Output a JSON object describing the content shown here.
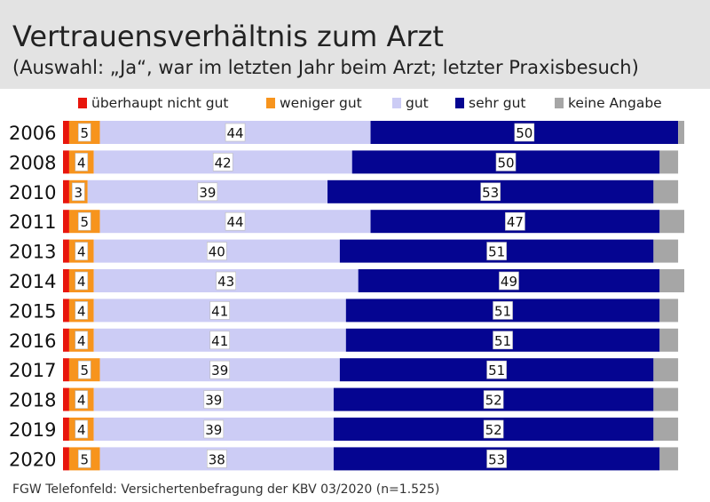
{
  "header": {
    "title": "Vertrauensverhältnis zum Arzt",
    "subtitle": "(Auswahl: „Ja“, war im letzten Jahr beim Arzt; letzter Praxisbesuch)"
  },
  "legend": {
    "items": [
      {
        "label": "überhaupt nicht gut",
        "color": "#e8160c"
      },
      {
        "label": "weniger gut",
        "color": "#f7941d"
      },
      {
        "label": "gut",
        "color": "#ccccf5"
      },
      {
        "label": "sehr gut",
        "color": "#050591"
      },
      {
        "label": "keine Angabe",
        "color": "#a6a6a6"
      }
    ]
  },
  "footer": {
    "source": "FGW Telefonfeld: Versichertenbefragung der KBV 03/2020 (n=1.525)"
  },
  "chart_data": {
    "type": "bar",
    "orientation": "horizontal",
    "stacked": true,
    "categories": [
      "2006",
      "2008",
      "2010",
      "2011",
      "2013",
      "2014",
      "2015",
      "2016",
      "2017",
      "2018",
      "2019",
      "2020"
    ],
    "series": [
      {
        "name": "überhaupt nicht gut",
        "color": "#e8160c",
        "values": [
          1,
          1,
          1,
          1,
          1,
          1,
          1,
          1,
          1,
          1,
          1,
          1
        ]
      },
      {
        "name": "weniger gut",
        "color": "#f7941d",
        "values": [
          5,
          4,
          3,
          5,
          4,
          4,
          4,
          4,
          5,
          4,
          4,
          5
        ]
      },
      {
        "name": "gut",
        "color": "#ccccf5",
        "values": [
          44,
          42,
          39,
          44,
          40,
          43,
          41,
          41,
          39,
          39,
          39,
          38
        ]
      },
      {
        "name": "sehr gut",
        "color": "#050591",
        "values": [
          50,
          50,
          53,
          47,
          51,
          49,
          51,
          51,
          51,
          52,
          52,
          53
        ]
      },
      {
        "name": "keine Angabe",
        "color": "#a6a6a6",
        "values": [
          1,
          3,
          4,
          4,
          4,
          4,
          3,
          3,
          4,
          4,
          4,
          3
        ]
      }
    ],
    "labeled_series": [
      "weniger gut",
      "gut",
      "sehr gut"
    ],
    "xlim": [
      0,
      101
    ]
  }
}
